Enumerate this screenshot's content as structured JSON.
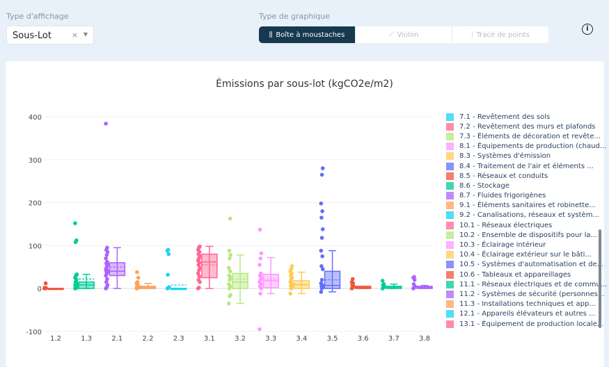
{
  "controls": {
    "display_type_label": "Type d'affichage",
    "display_type_value": "Sous-Lot",
    "clear": "×",
    "chart_type_label": "Type de graphique",
    "chart_types": [
      {
        "label": "Boîte à moustaches",
        "icon": "boxplot-icon"
      },
      {
        "label": "Violon",
        "icon": "violin-icon"
      },
      {
        "label": "Tracé de points",
        "icon": "strip-icon"
      }
    ],
    "info": "i"
  },
  "chart_data": {
    "type": "box",
    "title": "Émissions par sous-lot (kgCO2e/m2)",
    "xlabel": "",
    "ylabel": "",
    "ylim": [
      -100,
      400
    ],
    "yticks": [
      -100,
      0,
      100,
      200,
      300,
      400
    ],
    "grid": true,
    "legend_position": "right",
    "categories": [
      "1.2",
      "1.3",
      "2.1",
      "2.2",
      "2.3",
      "3.1",
      "3.2",
      "3.3",
      "3.4",
      "3.5",
      "3.6",
      "3.7",
      "3.8"
    ],
    "series": [
      {
        "cat": "1.2",
        "color": "#EF553B",
        "min": 0,
        "q1": 0,
        "median": 0,
        "q3": 0,
        "max": 0,
        "mean": 0,
        "points": [
          0,
          0,
          1,
          2,
          12
        ]
      },
      {
        "cat": "1.3",
        "color": "#00CC96",
        "min": 0,
        "q1": 0,
        "median": 8,
        "q3": 15,
        "max": 33,
        "mean": 22,
        "points": [
          0,
          1,
          2,
          4,
          6,
          8,
          10,
          12,
          15,
          20,
          25,
          30,
          33,
          108,
          112,
          152
        ]
      },
      {
        "cat": "2.1",
        "color": "#AB63FA",
        "min": 0,
        "q1": 30,
        "median": 40,
        "q3": 60,
        "max": 95,
        "mean": 50,
        "points": [
          0,
          3,
          8,
          15,
          22,
          30,
          35,
          38,
          40,
          42,
          45,
          50,
          55,
          58,
          62,
          70,
          78,
          85,
          90,
          95,
          384
        ]
      },
      {
        "cat": "2.2",
        "color": "#FFA15A",
        "min": 0,
        "q1": 0,
        "median": 2,
        "q3": 5,
        "max": 12,
        "mean": 3,
        "points": [
          0,
          1,
          2,
          5,
          8,
          12,
          15,
          25,
          38
        ]
      },
      {
        "cat": "2.3",
        "color": "#19D3F3",
        "min": 0,
        "q1": 0,
        "median": 0,
        "q3": 0,
        "max": 0,
        "mean": 8,
        "points": [
          0,
          1,
          3,
          32,
          80,
          88,
          90
        ]
      },
      {
        "cat": "3.1",
        "color": "#FF6692",
        "min": 0,
        "q1": 25,
        "median": 62,
        "q3": 80,
        "max": 98,
        "mean": 55,
        "points": [
          0,
          2,
          15,
          20,
          28,
          35,
          42,
          48,
          55,
          60,
          65,
          70,
          75,
          80,
          85,
          90,
          95,
          98
        ]
      },
      {
        "cat": "3.2",
        "color": "#B6E880",
        "min": -35,
        "q1": 0,
        "median": 15,
        "q3": 35,
        "max": 78,
        "mean": 22,
        "points": [
          -35,
          -18,
          -15,
          0,
          5,
          10,
          20,
          25,
          30,
          40,
          48,
          70,
          78,
          88,
          163
        ]
      },
      {
        "cat": "3.3",
        "color": "#FF97FF",
        "min": -12,
        "q1": 2,
        "median": 18,
        "q3": 33,
        "max": 72,
        "mean": 22,
        "points": [
          -95,
          -12,
          0,
          5,
          10,
          15,
          20,
          25,
          30,
          35,
          55,
          70,
          82,
          137
        ]
      },
      {
        "cat": "3.4",
        "color": "#FECB52",
        "min": -12,
        "q1": 0,
        "median": 8,
        "q3": 18,
        "max": 38,
        "mean": 10,
        "points": [
          -12,
          0,
          3,
          6,
          10,
          15,
          20,
          25,
          30,
          35,
          40,
          45,
          52
        ]
      },
      {
        "cat": "3.5",
        "color": "#636EFA",
        "min": -8,
        "q1": 0,
        "median": 7,
        "q3": 40,
        "max": 88,
        "mean": 20,
        "points": [
          -8,
          0,
          3,
          5,
          8,
          12,
          20,
          45,
          52,
          75,
          88,
          118,
          138,
          165,
          180,
          198,
          265,
          280
        ]
      },
      {
        "cat": "3.6",
        "color": "#EF553B",
        "min": 0,
        "q1": 0,
        "median": 2,
        "q3": 5,
        "max": 5,
        "mean": 3,
        "points": [
          0,
          2,
          5,
          8,
          12,
          15,
          22
        ]
      },
      {
        "cat": "3.7",
        "color": "#00CC96",
        "min": 0,
        "q1": 0,
        "median": 3,
        "q3": 5,
        "max": 10,
        "mean": 4,
        "points": [
          0,
          2,
          5,
          8,
          10,
          18
        ]
      },
      {
        "cat": "3.8",
        "color": "#AB63FA",
        "min": 0,
        "q1": 0,
        "median": 2,
        "q3": 5,
        "max": 7,
        "mean": 3,
        "points": [
          0,
          2,
          5,
          10,
          20,
          25,
          27
        ]
      }
    ],
    "legend": [
      {
        "label": "7.1 - Revêtement des sols",
        "color": "#19D3F3"
      },
      {
        "label": "7.2 - Revêtement des murs et plafonds",
        "color": "#FF6692"
      },
      {
        "label": "7.3 - Éléments de décoration et revête...",
        "color": "#B6E880"
      },
      {
        "label": "8.1 - Équipements de production (chaud...",
        "color": "#FF97FF"
      },
      {
        "label": "8.3 - Systèmes d'émission",
        "color": "#FECB52"
      },
      {
        "label": "8.4 - Traitement de l'air et éléments ...",
        "color": "#636EFA"
      },
      {
        "label": "8.5 - Réseaux et conduits",
        "color": "#EF553B"
      },
      {
        "label": "8.6 - Stockage",
        "color": "#00CC96"
      },
      {
        "label": "8.7 - Fluides frigorigènes",
        "color": "#AB63FA"
      },
      {
        "label": "9.1 - Éléments sanitaires et robinette...",
        "color": "#FFA15A"
      },
      {
        "label": "9.2 - Canalisations, réseaux et systèm...",
        "color": "#19D3F3"
      },
      {
        "label": "10.1 - Réseaux électriques",
        "color": "#FF6692"
      },
      {
        "label": "10.2 - Ensemble de dispositifs pour la...",
        "color": "#B6E880"
      },
      {
        "label": "10.3 - Éclairage intérieur",
        "color": "#FF97FF"
      },
      {
        "label": "10.4 - Éclairage extérieur sur le bâti...",
        "color": "#FECB52"
      },
      {
        "label": "10.5 - Systèmes d'automatisation et de...",
        "color": "#636EFA"
      },
      {
        "label": "10.6 - Tableaux et appareillages",
        "color": "#EF553B"
      },
      {
        "label": "11.1 - Réseaux électriques et de commu...",
        "color": "#00CC96"
      },
      {
        "label": "11.2 - Systèmes de sécurité (personnes...",
        "color": "#AB63FA"
      },
      {
        "label": "11.3 - Installations techniques et app...",
        "color": "#FFA15A"
      },
      {
        "label": "12.1 - Appareils élévateurs et autres ...",
        "color": "#19D3F3"
      },
      {
        "label": "13.1 - Équipement de production locale...",
        "color": "#FF6692"
      }
    ]
  }
}
